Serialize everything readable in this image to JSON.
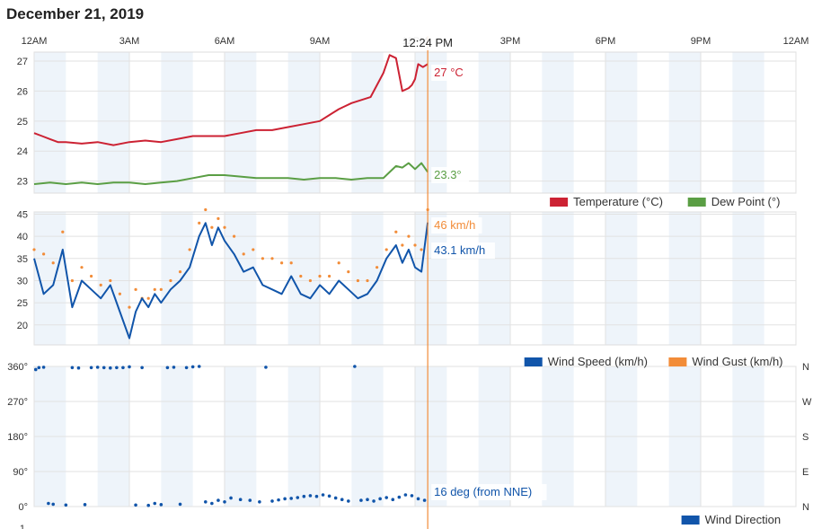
{
  "page": {
    "date_title": "December 21, 2019"
  },
  "colors": {
    "temperature": "#cc2233",
    "dew_point": "#5a9e44",
    "wind_speed": "#1155aa",
    "wind_gust": "#f28c38",
    "wind_direction": "#1155aa",
    "cursor": "#f28c38",
    "band": "#eef4fa",
    "grid": "#e2e2e2"
  },
  "chart_data": [
    {
      "type": "line",
      "title": "",
      "x_ticks": [
        "12AM",
        "3AM",
        "6AM",
        "9AM",
        "12PM",
        "3PM",
        "6PM",
        "9PM",
        "12AM"
      ],
      "x_range_hours": [
        0,
        24
      ],
      "ylim": [
        22.6,
        27.3
      ],
      "y_ticks": [
        "23",
        "24",
        "25",
        "26",
        "27"
      ],
      "grid": true,
      "legend_position": "bottom-right",
      "cursor": {
        "time_label": "12:24 PM",
        "hour": 12.4
      },
      "series": [
        {
          "name": "Temperature (°C)",
          "color": "#cc2233",
          "current_label": "27 °C",
          "x": [
            0,
            0.25,
            0.5,
            0.75,
            1,
            1.5,
            2,
            2.5,
            3,
            3.5,
            4,
            4.5,
            5,
            5.5,
            6,
            6.5,
            7,
            7.5,
            8,
            8.5,
            9,
            9.3,
            9.6,
            10,
            10.3,
            10.6,
            11,
            11.2,
            11.4,
            11.6,
            11.8,
            11.9,
            12,
            12.1,
            12.25,
            12.4
          ],
          "y": [
            24.6,
            24.5,
            24.4,
            24.3,
            24.3,
            24.25,
            24.3,
            24.2,
            24.3,
            24.35,
            24.3,
            24.4,
            24.5,
            24.5,
            24.5,
            24.6,
            24.7,
            24.7,
            24.8,
            24.9,
            25.0,
            25.2,
            25.4,
            25.6,
            25.7,
            25.8,
            26.6,
            27.2,
            27.1,
            26.0,
            26.1,
            26.2,
            26.4,
            26.9,
            26.8,
            26.9
          ]
        },
        {
          "name": "Dew Point (°)",
          "color": "#5a9e44",
          "current_label": "23.3°",
          "x": [
            0,
            0.5,
            1,
            1.5,
            2,
            2.5,
            3,
            3.5,
            4,
            4.5,
            5,
            5.5,
            6,
            6.5,
            7,
            7.5,
            8,
            8.5,
            9,
            9.5,
            10,
            10.5,
            11,
            11.2,
            11.4,
            11.6,
            11.8,
            12,
            12.2,
            12.4
          ],
          "y": [
            22.9,
            22.95,
            22.9,
            22.95,
            22.9,
            22.95,
            22.95,
            22.9,
            22.95,
            23.0,
            23.1,
            23.2,
            23.2,
            23.15,
            23.1,
            23.1,
            23.1,
            23.05,
            23.1,
            23.1,
            23.05,
            23.1,
            23.1,
            23.3,
            23.5,
            23.45,
            23.6,
            23.4,
            23.6,
            23.3
          ]
        }
      ]
    },
    {
      "type": "line",
      "title": "",
      "ylim": [
        15.5,
        45.5
      ],
      "y_ticks": [
        "20",
        "25",
        "30",
        "35",
        "40",
        "45"
      ],
      "grid": true,
      "legend_position": "bottom-right",
      "series": [
        {
          "name": "Wind Speed (km/h)",
          "color": "#1155aa",
          "current_label": "43.1 km/h",
          "x": [
            0,
            0.3,
            0.6,
            0.9,
            1.2,
            1.5,
            1.8,
            2.1,
            2.4,
            2.7,
            3.0,
            3.2,
            3.4,
            3.6,
            3.8,
            4.0,
            4.3,
            4.6,
            4.9,
            5.2,
            5.4,
            5.6,
            5.8,
            6.0,
            6.3,
            6.6,
            6.9,
            7.2,
            7.5,
            7.8,
            8.1,
            8.4,
            8.7,
            9.0,
            9.3,
            9.6,
            9.9,
            10.2,
            10.5,
            10.8,
            11.1,
            11.4,
            11.6,
            11.8,
            12.0,
            12.2,
            12.4
          ],
          "y": [
            35,
            27,
            29,
            37,
            24,
            30,
            28,
            26,
            29,
            23,
            17,
            23,
            26,
            24,
            27,
            25,
            28,
            30,
            33,
            40,
            43,
            38,
            42,
            39,
            36,
            32,
            33,
            29,
            28,
            27,
            31,
            27,
            26,
            29,
            27,
            30,
            28,
            26,
            27,
            30,
            35,
            38,
            34,
            37,
            33,
            32,
            43.1
          ]
        },
        {
          "name": "Wind Gust (km/h)",
          "color": "#f28c38",
          "current_label": "46 km/h",
          "x": [
            0,
            0.3,
            0.6,
            0.9,
            1.2,
            1.5,
            1.8,
            2.1,
            2.4,
            2.7,
            3.0,
            3.2,
            3.4,
            3.6,
            3.8,
            4.0,
            4.3,
            4.6,
            4.9,
            5.2,
            5.4,
            5.6,
            5.8,
            6.0,
            6.3,
            6.6,
            6.9,
            7.2,
            7.5,
            7.8,
            8.1,
            8.4,
            8.7,
            9.0,
            9.3,
            9.6,
            9.9,
            10.2,
            10.5,
            10.8,
            11.1,
            11.4,
            11.6,
            11.8,
            12.0,
            12.2,
            12.4
          ],
          "y": [
            37,
            36,
            34,
            41,
            30,
            33,
            31,
            29,
            30,
            27,
            24,
            28,
            26,
            26,
            28,
            28,
            30,
            32,
            37,
            43,
            46,
            42,
            44,
            42,
            40,
            36,
            37,
            35,
            35,
            34,
            34,
            31,
            30,
            31,
            31,
            34,
            32,
            30,
            30,
            33,
            37,
            41,
            38,
            40,
            38,
            37,
            46
          ]
        }
      ]
    },
    {
      "type": "scatter",
      "title": "",
      "ylim": [
        0,
        360
      ],
      "y_ticks": [
        "0°",
        "90°",
        "180°",
        "270°",
        "360°"
      ],
      "y_ticks_right": [
        "N",
        "E",
        "S",
        "W",
        "N"
      ],
      "bottom_tick_label": "1",
      "grid": true,
      "legend_position": "bottom-right",
      "series": [
        {
          "name": "Wind Direction",
          "color": "#1155aa",
          "current_label": "16 deg (from NNE)",
          "x": [
            0.05,
            0.15,
            0.3,
            0.45,
            0.6,
            1.0,
            1.2,
            1.4,
            1.6,
            1.8,
            2.0,
            2.2,
            2.4,
            2.6,
            2.8,
            3.0,
            3.2,
            3.4,
            3.6,
            3.8,
            4.0,
            4.2,
            4.4,
            4.6,
            4.8,
            5.0,
            5.2,
            5.4,
            5.6,
            5.8,
            6.0,
            6.2,
            6.5,
            6.8,
            7.1,
            7.3,
            7.5,
            7.7,
            7.9,
            8.1,
            8.3,
            8.5,
            8.7,
            8.9,
            9.1,
            9.3,
            9.5,
            9.7,
            9.9,
            10.1,
            10.3,
            10.5,
            10.7,
            10.9,
            11.1,
            11.3,
            11.5,
            11.7,
            11.9,
            12.1,
            12.3
          ],
          "y": [
            352,
            357,
            358,
            8,
            6,
            4,
            357,
            356,
            5,
            357,
            358,
            357,
            356,
            357,
            357,
            359,
            4,
            357,
            3,
            8,
            5,
            357,
            358,
            6,
            357,
            359,
            360,
            12,
            8,
            16,
            12,
            22,
            18,
            16,
            12,
            358,
            14,
            17,
            20,
            21,
            23,
            26,
            28,
            26,
            30,
            27,
            22,
            18,
            14,
            360,
            16,
            18,
            14,
            20,
            23,
            18,
            24,
            30,
            28,
            20,
            16
          ]
        }
      ]
    }
  ]
}
